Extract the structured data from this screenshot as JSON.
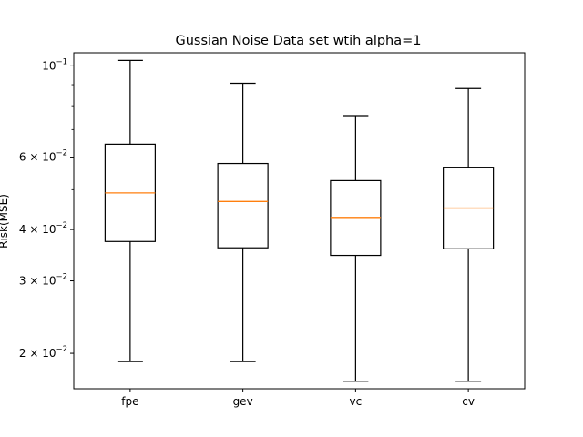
{
  "chart_data": {
    "type": "box",
    "title": "Gussian Noise Data set wtih alpha=1",
    "xlabel": "",
    "ylabel": "Risk(MSE)",
    "y_scale": "log",
    "ylim": [
      0.0164,
      0.1076
    ],
    "grid": false,
    "categories": [
      "fpe",
      "gev",
      "vc",
      "cv"
    ],
    "boxes": [
      {
        "label": "fpe",
        "whislo": 0.0191,
        "q1": 0.0374,
        "med": 0.0491,
        "q3": 0.0645,
        "whishi": 0.1031
      },
      {
        "label": "gev",
        "whislo": 0.0191,
        "q1": 0.0361,
        "med": 0.0468,
        "q3": 0.0579,
        "whishi": 0.0907
      },
      {
        "label": "vc",
        "whislo": 0.0171,
        "q1": 0.0346,
        "med": 0.0428,
        "q3": 0.0526,
        "whishi": 0.0757
      },
      {
        "label": "cv",
        "whislo": 0.0171,
        "q1": 0.0359,
        "med": 0.0451,
        "q3": 0.0567,
        "whishi": 0.0881
      }
    ],
    "y_ticks": [
      {
        "value": 0.02,
        "mantissa": "2",
        "exponent": "−2"
      },
      {
        "value": 0.03,
        "mantissa": "3",
        "exponent": "−2"
      },
      {
        "value": 0.04,
        "mantissa": "4",
        "exponent": "−2"
      },
      {
        "value": 0.06,
        "mantissa": "6",
        "exponent": "−2"
      },
      {
        "value": 0.1,
        "mantissa": "",
        "exponent": "−1"
      }
    ],
    "minor_ticks": [
      0.05,
      0.07,
      0.08,
      0.09
    ],
    "colors": {
      "box": "#000000",
      "median": "#ff7f0e",
      "background": "#ffffff"
    }
  }
}
